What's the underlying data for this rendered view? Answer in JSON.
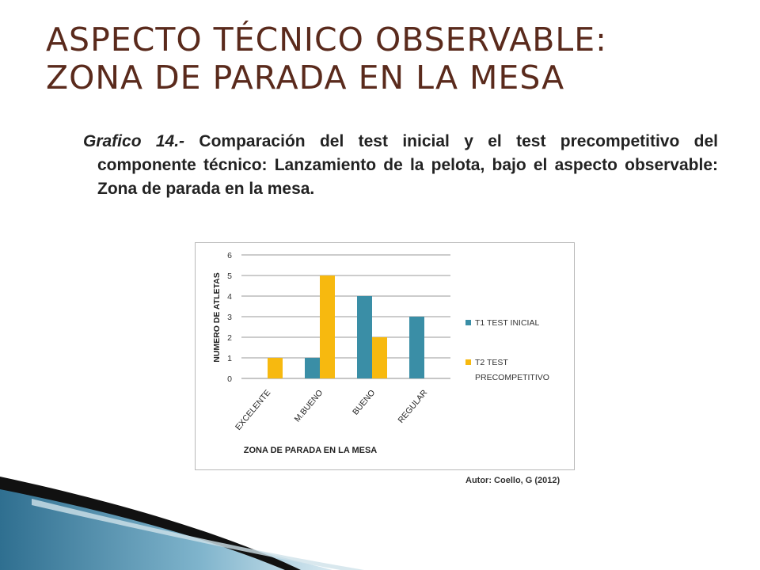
{
  "slide": {
    "title_line1": "ASPECTO TÉCNICO OBSERVABLE:",
    "title_line2": "ZONA DE PARADA EN LA MESA",
    "caption_label": "Grafico 14.-",
    "caption_text": "  Comparación del test inicial  y el test precompetitivo del componente técnico: Lanzamiento de la pelota, bajo el aspecto observable: Zona de parada en la mesa.",
    "author": "Autor: Coello, G (2012)"
  },
  "chart_data": {
    "type": "bar",
    "title": "",
    "xlabel": "ZONA DE PARADA EN LA MESA",
    "ylabel": "NUMERO DE ATLETAS",
    "ylim": [
      0,
      6
    ],
    "yticks": [
      0,
      1,
      2,
      3,
      4,
      5,
      6
    ],
    "grid": true,
    "legend_position": "right",
    "categories": [
      "EXCELENTE",
      "M.BUENO",
      "BUENO",
      "REGULAR"
    ],
    "series": [
      {
        "name": "T1  TEST INICIAL",
        "legend_lines": [
          "T1  TEST INICIAL"
        ],
        "color": "#3a8ea6",
        "values": [
          0,
          1,
          4,
          3
        ]
      },
      {
        "name": "T2  TEST PRECOMPETITIVO",
        "legend_lines": [
          "T2  TEST",
          "PRECOMPETITIVO"
        ],
        "color": "#f7b90f",
        "values": [
          1,
          5,
          2,
          0
        ]
      }
    ]
  },
  "decor": {
    "band_color": "#3b7fa0",
    "shadow_color": "#111111"
  }
}
